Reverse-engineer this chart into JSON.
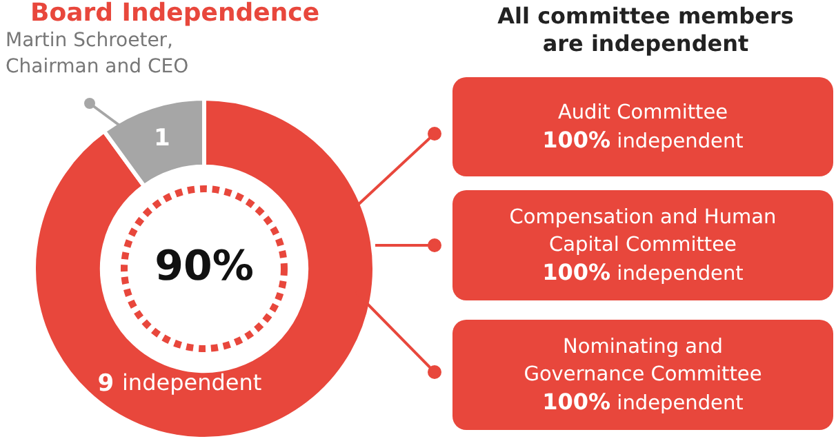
{
  "chart_data": {
    "type": "donut",
    "title": "Board Independence",
    "categories": [
      "independent",
      "Martin Schroeter,\nChairman and CEO"
    ],
    "values": [
      9,
      1
    ],
    "colors": [
      "#e8473c",
      "#a6a6a6"
    ],
    "data_labels": true,
    "legend": false,
    "annotations": [
      "90%",
      "All committee members\nare independent",
      "Audit Committee\n100% independent",
      "Compensation and Human\nCapital Committee\n100% independent",
      "Nominating and\nGovernance Committee\n100% independent"
    ]
  }
}
